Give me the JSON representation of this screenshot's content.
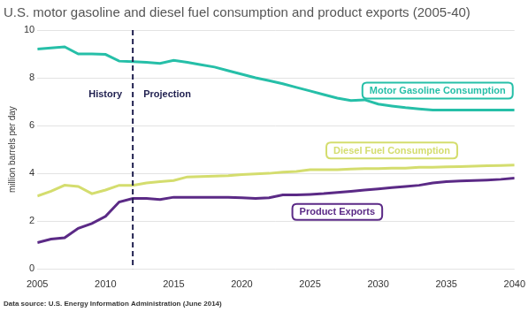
{
  "chart_data": {
    "type": "line",
    "title": "U.S. motor gasoline and diesel fuel consumption and product exports (2005-40)",
    "y_label": "million barrels per day",
    "source": "Data source: U.S. Energy Information Administration (June 2014)",
    "divider": {
      "x": 2012,
      "left_label": "History",
      "right_label": "Projection"
    },
    "x": [
      2005,
      2006,
      2007,
      2008,
      2009,
      2010,
      2011,
      2012,
      2013,
      2014,
      2015,
      2016,
      2017,
      2018,
      2019,
      2020,
      2021,
      2022,
      2023,
      2024,
      2025,
      2026,
      2027,
      2028,
      2029,
      2030,
      2031,
      2032,
      2033,
      2034,
      2035,
      2036,
      2037,
      2038,
      2039,
      2040
    ],
    "series": [
      {
        "name": "Motor Gasoline Consumption",
        "color": "#26bfa8",
        "values": [
          9.2,
          9.25,
          9.3,
          9.0,
          9.0,
          8.98,
          8.7,
          8.68,
          8.65,
          8.6,
          8.73,
          8.65,
          8.55,
          8.45,
          8.3,
          8.15,
          8.0,
          7.88,
          7.75,
          7.6,
          7.45,
          7.3,
          7.15,
          7.05,
          7.08,
          6.9,
          6.82,
          6.75,
          6.7,
          6.65,
          6.65,
          6.65,
          6.65,
          6.65,
          6.65,
          6.65
        ]
      },
      {
        "name": "Diesel Fuel Consumption",
        "color": "#d4dd6e",
        "values": [
          3.05,
          3.25,
          3.5,
          3.45,
          3.15,
          3.3,
          3.5,
          3.5,
          3.6,
          3.65,
          3.7,
          3.85,
          3.87,
          3.88,
          3.9,
          3.95,
          3.98,
          4.0,
          4.05,
          4.08,
          4.15,
          4.15,
          4.15,
          4.18,
          4.2,
          4.2,
          4.22,
          4.22,
          4.25,
          4.25,
          4.27,
          4.28,
          4.3,
          4.32,
          4.33,
          4.35
        ]
      },
      {
        "name": "Product Exports",
        "color": "#5b2a86",
        "values": [
          1.1,
          1.25,
          1.3,
          1.7,
          1.9,
          2.2,
          2.8,
          2.95,
          2.95,
          2.9,
          3.0,
          3.0,
          3.0,
          3.0,
          3.0,
          2.98,
          2.95,
          2.98,
          3.1,
          3.1,
          3.12,
          3.15,
          3.2,
          3.25,
          3.3,
          3.35,
          3.4,
          3.45,
          3.5,
          3.6,
          3.65,
          3.68,
          3.7,
          3.72,
          3.75,
          3.8
        ]
      }
    ],
    "xlim": [
      2005,
      2040
    ],
    "xticks": [
      2005,
      2010,
      2015,
      2020,
      2025,
      2030,
      2035,
      2040
    ],
    "ylim": [
      0,
      10
    ],
    "yticks": [
      0,
      2,
      4,
      6,
      8,
      10
    ],
    "grid": true
  }
}
